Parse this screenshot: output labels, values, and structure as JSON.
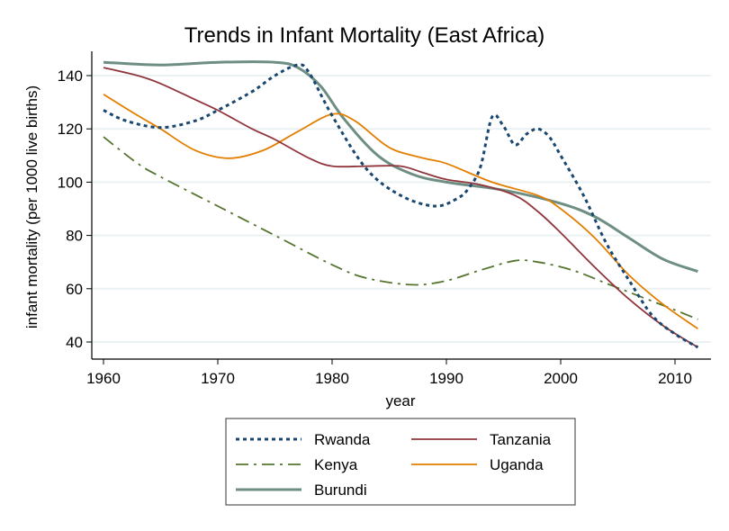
{
  "chart_data": {
    "type": "line",
    "title": "Trends in Infant Mortality (East Africa)",
    "xlabel": "year",
    "ylabel": "infant mortality (per 1000 live births)",
    "xlim": [
      1958.8,
      2014.6
    ],
    "ylim": [
      33.6,
      149
    ],
    "xticks": [
      1960,
      1970,
      1980,
      1990,
      2000,
      2010
    ],
    "yticks": [
      40,
      60,
      80,
      100,
      120,
      140
    ],
    "xtick_labels": [
      "1960",
      "1970",
      "1980",
      "1990",
      "2000",
      "2010"
    ],
    "ytick_labels": [
      "40",
      "60",
      "80",
      "100",
      "120",
      "140"
    ],
    "grid": "horizontal",
    "legend_position": "bottom",
    "series": [
      {
        "name": "Rwanda",
        "color": "#1a476f",
        "style": "dotted",
        "x": [
          1960,
          1962,
          1965,
          1968,
          1970,
          1973,
          1975,
          1977,
          1978,
          1980,
          1983,
          1986,
          1989,
          1991,
          1992,
          1993,
          1994,
          1995,
          1996,
          1997,
          1998,
          1999,
          2000,
          2002,
          2004,
          2006,
          2008,
          2010,
          2012
        ],
        "values": [
          127,
          123,
          120.5,
          123,
          127,
          134,
          140,
          144,
          141,
          125,
          105,
          95,
          91,
          94,
          98,
          106,
          124.5,
          121,
          114,
          118,
          120,
          117,
          110,
          95,
          77,
          63,
          50,
          43,
          38
        ]
      },
      {
        "name": "Tanzania",
        "color": "#90353b",
        "style": "solid",
        "x": [
          1960,
          1963,
          1965,
          1968,
          1970,
          1973,
          1975,
          1978,
          1980,
          1983,
          1986,
          1988,
          1990,
          1993,
          1996,
          1998,
          2000,
          2003,
          2006,
          2009,
          2012
        ],
        "values": [
          143,
          140,
          137,
          131,
          127,
          120,
          116,
          109,
          106,
          106,
          106,
          103.5,
          101,
          99,
          95,
          89,
          81,
          68,
          56,
          46,
          38
        ]
      },
      {
        "name": "Kenya",
        "color": "#55752f",
        "style": "dashdot",
        "x": [
          1960,
          1963,
          1965,
          1970,
          1975,
          1980,
          1983,
          1987,
          1990,
          1993,
          1996,
          1998,
          2001,
          2004,
          2007,
          2010,
          2012
        ],
        "values": [
          117,
          107,
          102,
          91,
          80,
          69,
          64,
          61.5,
          63,
          67,
          70.5,
          70,
          67,
          62,
          57,
          52,
          48.5
        ]
      },
      {
        "name": "Uganda",
        "color": "#e37e00",
        "style": "solid",
        "x": [
          1960,
          1963,
          1965,
          1968,
          1971,
          1974,
          1977,
          1980,
          1982,
          1985,
          1988,
          1990,
          1994,
          1998,
          2000,
          2003,
          2006,
          2009,
          2012
        ],
        "values": [
          133,
          125,
          120,
          112,
          109,
          112,
          119,
          125.5,
          123,
          113,
          109,
          107,
          100,
          95,
          90,
          79,
          65,
          54,
          45
        ]
      },
      {
        "name": "Burundi",
        "color": "#6e8e84",
        "style": "solid-thick",
        "x": [
          1960,
          1965,
          1970,
          1975,
          1977,
          1979,
          1981,
          1984,
          1987,
          1990,
          1995,
          2000,
          2003,
          2006,
          2009,
          2012
        ],
        "values": [
          145,
          144,
          145,
          145,
          143,
          136,
          124,
          110,
          103,
          100,
          97,
          92,
          87,
          79,
          71,
          66.5
        ]
      }
    ],
    "legend": {
      "rows": [
        [
          "Rwanda",
          "Tanzania"
        ],
        [
          "Kenya",
          "Uganda"
        ],
        [
          "Burundi"
        ]
      ]
    }
  }
}
